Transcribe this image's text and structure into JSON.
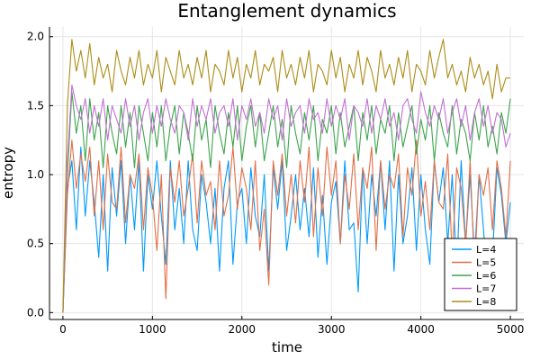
{
  "chart_data": {
    "type": "line",
    "title": "Entanglement dynamics",
    "xlabel": "time",
    "ylabel": "entropy",
    "xlim": [
      -150,
      5150
    ],
    "ylim": [
      -0.05,
      2.07
    ],
    "xticks": [
      0,
      1000,
      2000,
      3000,
      4000,
      5000
    ],
    "xtick_labels": [
      "0",
      "1000",
      "2000",
      "3000",
      "4000",
      "5000"
    ],
    "yticks": [
      0.0,
      0.5,
      1.0,
      1.5,
      2.0
    ],
    "ytick_labels": [
      "0.0",
      "0.5",
      "1.0",
      "1.5",
      "2.0"
    ],
    "grid": true,
    "legend_position": "bottom-right",
    "series": [
      {
        "name": "L=4",
        "color": "#009AFA",
        "x": [
          0,
          50,
          100,
          150,
          200,
          250,
          300,
          350,
          400,
          450,
          500,
          550,
          600,
          650,
          700,
          750,
          800,
          850,
          900,
          950,
          1000,
          1050,
          1100,
          1150,
          1200,
          1250,
          1300,
          1350,
          1400,
          1450,
          1500,
          1550,
          1600,
          1650,
          1700,
          1750,
          1800,
          1850,
          1900,
          1950,
          2000,
          2050,
          2100,
          2150,
          2200,
          2250,
          2300,
          2350,
          2400,
          2450,
          2500,
          2550,
          2600,
          2650,
          2700,
          2750,
          2800,
          2850,
          2900,
          2950,
          3000,
          3050,
          3100,
          3150,
          3200,
          3250,
          3300,
          3350,
          3400,
          3450,
          3500,
          3550,
          3600,
          3650,
          3700,
          3750,
          3800,
          3850,
          3900,
          3950,
          4000,
          4050,
          4100,
          4150,
          4200,
          4250,
          4300,
          4350,
          4400,
          4450,
          4500,
          4550,
          4600,
          4650,
          4700,
          4750,
          4800,
          4850,
          4900,
          4950,
          5000
        ],
        "y": [
          0.0,
          0.9,
          1.1,
          0.6,
          1.2,
          0.7,
          1.1,
          0.8,
          0.4,
          1.0,
          0.3,
          1.05,
          0.7,
          1.1,
          0.5,
          1.0,
          0.6,
          1.1,
          0.3,
          1.0,
          0.75,
          1.1,
          0.7,
          0.35,
          1.1,
          0.6,
          0.9,
          0.5,
          1.1,
          0.6,
          0.45,
          1.0,
          0.8,
          0.5,
          0.9,
          0.3,
          0.9,
          1.1,
          0.35,
          0.8,
          0.9,
          0.5,
          1.05,
          0.7,
          0.55,
          1.0,
          0.3,
          1.05,
          0.75,
          1.1,
          0.45,
          0.7,
          1.0,
          0.6,
          0.9,
          0.55,
          1.05,
          0.4,
          0.85,
          0.35,
          0.8,
          0.95,
          0.5,
          1.1,
          0.6,
          0.65,
          0.15,
          1.05,
          0.5,
          1.0,
          0.7,
          1.1,
          0.6,
          1.1,
          0.3,
          1.0,
          0.5,
          0.7,
          1.05,
          0.45,
          1.0,
          0.6,
          0.35,
          1.1,
          0.8,
          1.05,
          0.5,
          1.0,
          0.3,
          1.1,
          0.5,
          1.0,
          0.4,
          1.0,
          0.6,
          0.2,
          0.4,
          1.05,
          0.85,
          0.5,
          0.8
        ]
      },
      {
        "name": "L=5",
        "color": "#E26F46",
        "x": [
          0,
          50,
          100,
          150,
          200,
          250,
          300,
          350,
          400,
          450,
          500,
          550,
          600,
          650,
          700,
          750,
          800,
          850,
          900,
          950,
          1000,
          1050,
          1100,
          1150,
          1200,
          1250,
          1300,
          1350,
          1400,
          1450,
          1500,
          1550,
          1600,
          1650,
          1700,
          1750,
          1800,
          1850,
          1900,
          1950,
          2000,
          2050,
          2100,
          2150,
          2200,
          2250,
          2300,
          2350,
          2400,
          2450,
          2500,
          2550,
          2600,
          2650,
          2700,
          2750,
          2800,
          2850,
          2900,
          2950,
          3000,
          3050,
          3100,
          3150,
          3200,
          3250,
          3300,
          3350,
          3400,
          3450,
          3500,
          3550,
          3600,
          3650,
          3700,
          3750,
          3800,
          3850,
          3900,
          3950,
          4000,
          4050,
          4100,
          4150,
          4200,
          4250,
          4300,
          4350,
          4400,
          4450,
          4500,
          4550,
          4600,
          4650,
          4700,
          4750,
          4800,
          4850,
          4900,
          4950,
          5000
        ],
        "y": [
          0.0,
          0.85,
          1.25,
          0.9,
          1.15,
          0.95,
          1.2,
          0.7,
          1.1,
          0.6,
          1.15,
          0.8,
          0.75,
          1.2,
          0.65,
          1.0,
          0.9,
          1.15,
          0.6,
          1.05,
          0.85,
          0.45,
          1.0,
          0.1,
          1.05,
          0.8,
          1.1,
          0.7,
          0.9,
          1.15,
          0.65,
          1.1,
          0.85,
          0.95,
          0.6,
          1.1,
          0.7,
          0.85,
          1.2,
          0.75,
          1.05,
          0.9,
          0.6,
          1.1,
          0.45,
          0.75,
          0.2,
          1.1,
          0.85,
          1.15,
          0.7,
          1.0,
          0.65,
          1.1,
          0.8,
          1.2,
          0.55,
          1.05,
          0.7,
          1.2,
          0.85,
          1.1,
          0.5,
          1.0,
          0.75,
          1.15,
          0.6,
          1.05,
          0.9,
          1.2,
          0.45,
          1.1,
          0.75,
          1.0,
          0.9,
          1.15,
          0.55,
          1.05,
          0.85,
          1.25,
          0.7,
          0.95,
          0.6,
          1.1,
          0.8,
          0.75,
          1.15,
          0.4,
          1.05,
          0.9,
          0.5,
          1.1,
          0.3,
          1.0,
          0.85,
          1.05,
          0.6,
          1.1,
          0.9,
          0.55,
          1.1
        ]
      },
      {
        "name": "L=6",
        "color": "#3EA44E",
        "x": [
          0,
          50,
          100,
          150,
          200,
          250,
          300,
          350,
          400,
          450,
          500,
          550,
          600,
          650,
          700,
          750,
          800,
          850,
          900,
          950,
          1000,
          1050,
          1100,
          1150,
          1200,
          1250,
          1300,
          1350,
          1400,
          1450,
          1500,
          1550,
          1600,
          1650,
          1700,
          1750,
          1800,
          1850,
          1900,
          1950,
          2000,
          2050,
          2100,
          2150,
          2200,
          2250,
          2300,
          2350,
          2400,
          2450,
          2500,
          2550,
          2600,
          2650,
          2700,
          2750,
          2800,
          2850,
          2900,
          2950,
          3000,
          3050,
          3100,
          3150,
          3200,
          3250,
          3300,
          3350,
          3400,
          3450,
          3500,
          3550,
          3600,
          3650,
          3700,
          3750,
          3800,
          3850,
          3900,
          3950,
          4000,
          4050,
          4100,
          4150,
          4200,
          4250,
          4300,
          4350,
          4400,
          4450,
          4500,
          4550,
          4600,
          4650,
          4700,
          4750,
          4800,
          4850,
          4900,
          4950,
          5000
        ],
        "y": [
          0.0,
          1.0,
          1.6,
          1.3,
          1.5,
          1.1,
          1.55,
          1.25,
          1.45,
          1.05,
          1.5,
          1.3,
          1.15,
          1.5,
          1.2,
          1.45,
          1.05,
          1.5,
          1.3,
          1.1,
          1.45,
          1.2,
          1.5,
          1.1,
          1.35,
          1.5,
          1.15,
          1.45,
          1.3,
          1.1,
          1.5,
          1.25,
          1.4,
          1.05,
          1.5,
          1.3,
          1.15,
          1.45,
          1.2,
          1.5,
          1.1,
          1.35,
          1.5,
          1.2,
          1.45,
          1.1,
          1.3,
          1.5,
          1.2,
          1.4,
          1.05,
          1.5,
          1.3,
          1.15,
          1.45,
          1.25,
          1.5,
          1.1,
          1.4,
          1.3,
          1.5,
          1.15,
          1.45,
          1.2,
          1.35,
          1.5,
          1.1,
          1.45,
          1.25,
          1.5,
          1.15,
          1.4,
          1.3,
          1.5,
          1.1,
          1.45,
          1.2,
          1.35,
          1.5,
          1.15,
          1.4,
          1.25,
          1.5,
          1.1,
          1.45,
          1.3,
          1.2,
          1.5,
          1.15,
          1.4,
          1.3,
          1.1,
          1.45,
          1.25,
          1.5,
          1.2,
          1.35,
          1.15,
          1.45,
          1.3,
          1.55
        ]
      },
      {
        "name": "L=7",
        "color": "#C271D2",
        "x": [
          0,
          50,
          100,
          150,
          200,
          250,
          300,
          350,
          400,
          450,
          500,
          550,
          600,
          650,
          700,
          750,
          800,
          850,
          900,
          950,
          1000,
          1050,
          1100,
          1150,
          1200,
          1250,
          1300,
          1350,
          1400,
          1450,
          1500,
          1550,
          1600,
          1650,
          1700,
          1750,
          1800,
          1850,
          1900,
          1950,
          2000,
          2050,
          2100,
          2150,
          2200,
          2250,
          2300,
          2350,
          2400,
          2450,
          2500,
          2550,
          2600,
          2650,
          2700,
          2750,
          2800,
          2850,
          2900,
          2950,
          3000,
          3050,
          3100,
          3150,
          3200,
          3250,
          3300,
          3350,
          3400,
          3450,
          3500,
          3550,
          3600,
          3650,
          3700,
          3750,
          3800,
          3850,
          3900,
          3950,
          4000,
          4050,
          4100,
          4150,
          4200,
          4250,
          4300,
          4350,
          4400,
          4450,
          4500,
          4550,
          4600,
          4650,
          4700,
          4750,
          4800,
          4850,
          4900,
          4950,
          5000
        ],
        "y": [
          0.0,
          1.1,
          1.65,
          1.5,
          1.4,
          1.55,
          1.3,
          1.5,
          1.35,
          1.55,
          1.25,
          1.5,
          1.4,
          1.3,
          1.55,
          1.35,
          1.5,
          1.25,
          1.45,
          1.55,
          1.3,
          1.5,
          1.35,
          1.55,
          1.4,
          1.3,
          1.5,
          1.45,
          1.25,
          1.55,
          1.35,
          1.5,
          1.4,
          1.55,
          1.3,
          1.45,
          1.5,
          1.35,
          1.55,
          1.25,
          1.5,
          1.4,
          1.55,
          1.35,
          1.45,
          1.3,
          1.55,
          1.4,
          1.5,
          1.25,
          1.55,
          1.35,
          1.45,
          1.5,
          1.3,
          1.55,
          1.4,
          1.45,
          1.3,
          1.55,
          1.35,
          1.5,
          1.4,
          1.55,
          1.25,
          1.5,
          1.45,
          1.35,
          1.55,
          1.3,
          1.5,
          1.4,
          1.55,
          1.35,
          1.45,
          1.25,
          1.5,
          1.55,
          1.4,
          1.3,
          1.6,
          1.45,
          1.35,
          1.5,
          1.4,
          1.55,
          1.3,
          1.45,
          1.55,
          1.35,
          1.5,
          1.25,
          1.45,
          1.55,
          1.35,
          1.5,
          1.3,
          1.45,
          1.4,
          1.2,
          1.3
        ]
      },
      {
        "name": "L=8",
        "color": "#AC8D18",
        "x": [
          0,
          50,
          100,
          150,
          200,
          250,
          300,
          350,
          400,
          450,
          500,
          550,
          600,
          650,
          700,
          750,
          800,
          850,
          900,
          950,
          1000,
          1050,
          1100,
          1150,
          1200,
          1250,
          1300,
          1350,
          1400,
          1450,
          1500,
          1550,
          1600,
          1650,
          1700,
          1750,
          1800,
          1850,
          1900,
          1950,
          2000,
          2050,
          2100,
          2150,
          2200,
          2250,
          2300,
          2350,
          2400,
          2450,
          2500,
          2550,
          2600,
          2650,
          2700,
          2750,
          2800,
          2850,
          2900,
          2950,
          3000,
          3050,
          3100,
          3150,
          3200,
          3250,
          3300,
          3350,
          3400,
          3450,
          3500,
          3550,
          3600,
          3650,
          3700,
          3750,
          3800,
          3850,
          3900,
          3950,
          4000,
          4050,
          4100,
          4150,
          4200,
          4250,
          4300,
          4350,
          4400,
          4450,
          4500,
          4550,
          4600,
          4650,
          4700,
          4750,
          4800,
          4850,
          4900,
          4950,
          5000
        ],
        "y": [
          0.0,
          1.5,
          1.98,
          1.75,
          1.9,
          1.7,
          1.95,
          1.65,
          1.85,
          1.7,
          1.8,
          1.6,
          1.9,
          1.75,
          1.65,
          1.85,
          1.7,
          1.9,
          1.65,
          1.8,
          1.7,
          1.9,
          1.6,
          1.85,
          1.75,
          1.65,
          1.9,
          1.7,
          1.8,
          1.65,
          1.85,
          1.7,
          1.9,
          1.6,
          1.8,
          1.75,
          1.65,
          1.9,
          1.7,
          1.85,
          1.6,
          1.8,
          1.7,
          1.9,
          1.65,
          1.8,
          1.75,
          1.85,
          1.6,
          1.9,
          1.7,
          1.8,
          1.65,
          1.85,
          1.7,
          1.9,
          1.6,
          1.8,
          1.75,
          1.65,
          1.9,
          1.7,
          1.85,
          1.6,
          1.8,
          1.7,
          1.9,
          1.65,
          1.85,
          1.75,
          1.6,
          1.9,
          1.7,
          1.8,
          1.65,
          1.85,
          1.7,
          1.9,
          1.6,
          1.8,
          1.75,
          1.65,
          1.9,
          1.7,
          1.85,
          1.98,
          1.7,
          1.8,
          1.65,
          1.75,
          1.6,
          1.85,
          1.7,
          1.8,
          1.65,
          1.75,
          1.55,
          1.8,
          1.6,
          1.7,
          1.7
        ]
      }
    ]
  }
}
